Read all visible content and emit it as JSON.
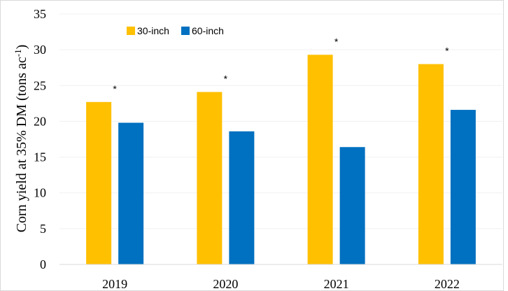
{
  "chart_data": {
    "type": "bar",
    "title": "",
    "xlabel": "",
    "ylabel": "Corn yield at 35% DM (tons ac",
    "ylabel_superscript": "-1",
    "ylabel_suffix": ")",
    "categories": [
      "2019",
      "2020",
      "2021",
      "2022"
    ],
    "series": [
      {
        "name": "30-inch",
        "color": "#FFC000",
        "values": [
          22.7,
          24.1,
          29.3,
          28.0
        ]
      },
      {
        "name": "60-inch",
        "color": "#0070C0",
        "values": [
          19.8,
          18.6,
          16.4,
          21.6
        ]
      }
    ],
    "significance": [
      "*",
      "*",
      "*",
      "*"
    ],
    "ylim": [
      0,
      35
    ],
    "yticks": [
      0,
      5,
      10,
      15,
      20,
      25,
      30,
      35
    ],
    "grid": true,
    "legend_position": "top-left"
  }
}
